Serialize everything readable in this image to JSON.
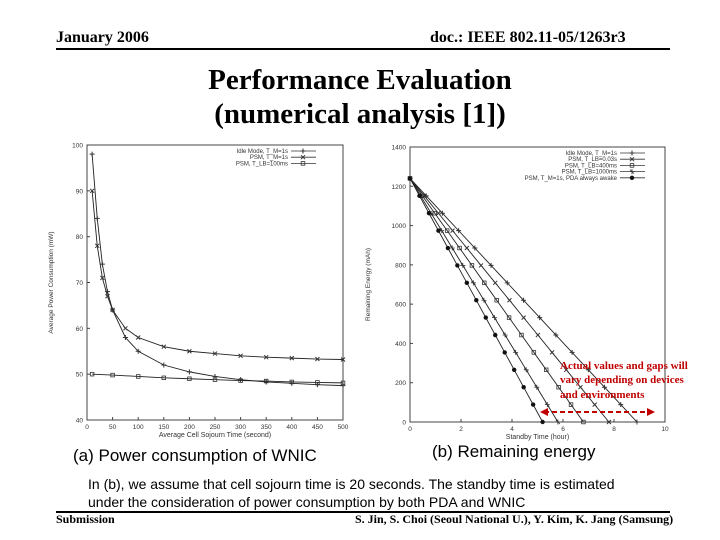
{
  "header": {
    "date": "January 2006",
    "doc": "doc.: IEEE 802.11-05/1263r3"
  },
  "title": {
    "line1": "Performance Evaluation",
    "line2": "(numerical analysis [1])"
  },
  "chart_data": [
    {
      "type": "line",
      "xlabel": "Average Cell Sojourn Time (second)",
      "ylabel": "Average Power Consumption (mW)",
      "xlim": [
        0,
        500
      ],
      "ylim": [
        40,
        100
      ],
      "xticks": [
        0,
        50,
        100,
        150,
        200,
        250,
        300,
        350,
        400,
        450,
        500
      ],
      "yticks": [
        40,
        50,
        60,
        70,
        80,
        90,
        100
      ],
      "legend": [
        "Idle Mode, T_M=1s",
        "PSM, T_M=1s",
        "PSM, T_LB=100ms"
      ],
      "series": [
        {
          "name": "Idle Mode, T_M=1s",
          "x": [
            10,
            20,
            30,
            40,
            50,
            75,
            100,
            150,
            200,
            250,
            300,
            350,
            400,
            450,
            500
          ],
          "y": [
            98,
            84,
            74,
            68,
            64,
            58,
            55,
            52,
            50.5,
            49.5,
            48.8,
            48.3,
            48,
            47.7,
            47.5
          ]
        },
        {
          "name": "PSM, T_M=1s",
          "x": [
            10,
            20,
            30,
            40,
            50,
            75,
            100,
            150,
            200,
            250,
            300,
            350,
            400,
            450,
            500
          ],
          "y": [
            90,
            78,
            71,
            67,
            64,
            60,
            58,
            56,
            55,
            54.5,
            54,
            53.7,
            53.5,
            53.3,
            53.2
          ]
        },
        {
          "name": "PSM, T_LB=100ms",
          "x": [
            10,
            50,
            100,
            150,
            200,
            250,
            300,
            350,
            400,
            450,
            500
          ],
          "y": [
            50,
            49.8,
            49.5,
            49.2,
            49,
            48.8,
            48.6,
            48.5,
            48.3,
            48.2,
            48.1
          ]
        }
      ]
    },
    {
      "type": "line",
      "xlabel": "Standby Time (hour)",
      "ylabel": "Remaining Energy (mAh)",
      "xlim": [
        0,
        10
      ],
      "ylim": [
        0,
        1400
      ],
      "xticks": [
        0,
        2,
        4,
        6,
        8,
        10
      ],
      "yticks": [
        0,
        200,
        400,
        600,
        800,
        1000,
        1200,
        1400
      ],
      "legend": [
        "Idle Mode, T_M=1s",
        "PSM, T_LB=0.03s",
        "PSM, T_LB=400ms",
        "PSM, T_LB=1000ms",
        "PSM, T_M=1s, PDA always awake"
      ],
      "series": [
        {
          "name": "Idle Mode, T_M=1s",
          "x": [
            0,
            8.9
          ],
          "y": [
            1240,
            0
          ]
        },
        {
          "name": "PSM, T_LB=0.03s",
          "x": [
            0,
            7.8
          ],
          "y": [
            1240,
            0
          ]
        },
        {
          "name": "PSM, T_LB=400ms",
          "x": [
            0,
            6.8
          ],
          "y": [
            1240,
            0
          ]
        },
        {
          "name": "PSM, T_LB=1000ms",
          "x": [
            0,
            5.8
          ],
          "y": [
            1240,
            0
          ]
        },
        {
          "name": "PSM, T_M=1s, PDA always awake",
          "x": [
            0,
            5.2
          ],
          "y": [
            1240,
            0
          ]
        }
      ]
    }
  ],
  "annotation": {
    "line1": "Actual values and gaps will",
    "line2": "vary depending on devices",
    "line3": "and environments",
    "color": "#c00000"
  },
  "captions": {
    "a": "(a) Power consumption of WNIC",
    "b": "(b) Remaining energy"
  },
  "note": {
    "line1": "In (b), we assume that cell sojourn time is 20 seconds. The standby time is estimated",
    "line2": "under the consideration of power consumption by both PDA and WNIC"
  },
  "footer": {
    "left": "Submission",
    "right": "S. Jin, S. Choi (Seoul National U.), Y. Kim, K. Jang (Samsung)"
  }
}
